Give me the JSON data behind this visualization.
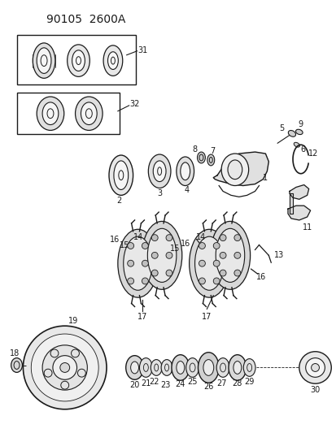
{
  "title": "90105  2600A",
  "bg_color": "#ffffff",
  "line_color": "#1a1a1a",
  "title_fontsize": 10,
  "label_fontsize": 7,
  "figsize": [
    4.14,
    5.33
  ],
  "dpi": 100
}
